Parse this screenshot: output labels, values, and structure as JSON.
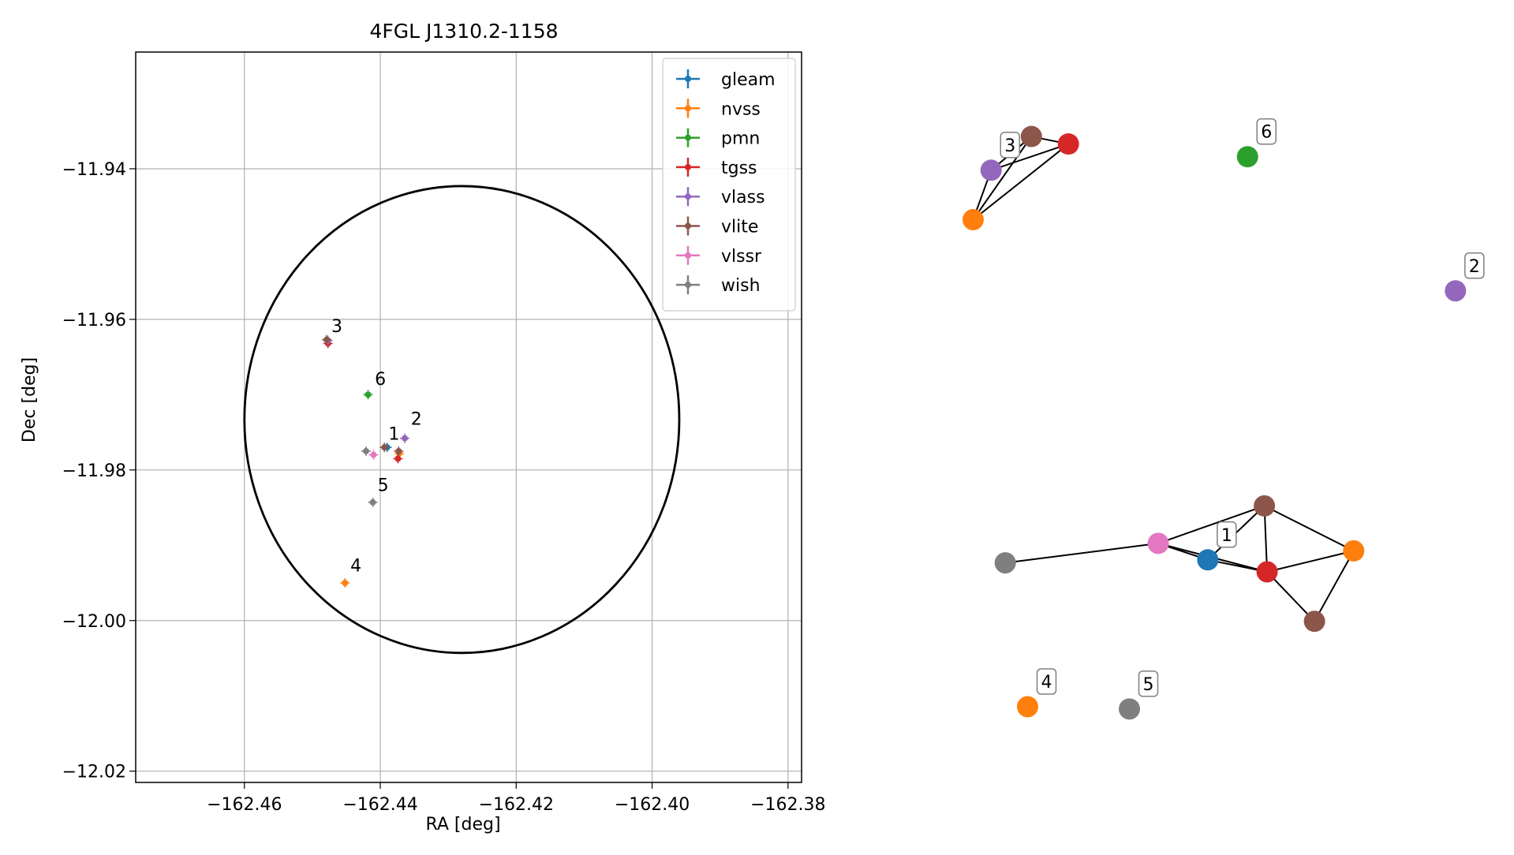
{
  "chart_data": [
    {
      "type": "scatter",
      "title": "4FGL J1310.2-1158",
      "xlabel": "RA [deg]",
      "ylabel": "Dec [deg]",
      "xlim": [
        -162.476,
        -162.378
      ],
      "ylim": [
        -12.0215,
        -11.9245
      ],
      "xticks": [
        -162.46,
        -162.44,
        -162.42,
        -162.4,
        -162.38
      ],
      "xtick_labels": [
        "−162.46",
        "−162.44",
        "−162.42",
        "−162.40",
        "−162.38"
      ],
      "yticks": [
        -11.94,
        -11.96,
        -11.98,
        -12.0,
        -12.02
      ],
      "ytick_labels": [
        "−11.94",
        "−11.96",
        "−11.98",
        "−12.00",
        "−12.02"
      ],
      "grid": true,
      "legend": "top-right",
      "series": [
        {
          "name": "gleam",
          "color": "#1f77b4",
          "points": [
            [
              -162.439,
              -11.977
            ]
          ]
        },
        {
          "name": "nvss",
          "color": "#ff7f0e",
          "points": [
            [
              -162.4372,
              -11.9778
            ],
            [
              -162.4452,
              -11.995
            ]
          ]
        },
        {
          "name": "pmn",
          "color": "#2ca02c",
          "points": [
            [
              -162.4418,
              -11.97
            ]
          ]
        },
        {
          "name": "tgss",
          "color": "#d62728",
          "points": [
            [
              -162.4374,
              -11.9785
            ],
            [
              -162.4477,
              -11.9632
            ]
          ]
        },
        {
          "name": "vlass",
          "color": "#9467bd",
          "points": [
            [
              -162.4364,
              -11.9758
            ],
            [
              -162.4477,
              -11.9628
            ]
          ]
        },
        {
          "name": "vlite",
          "color": "#8c564b",
          "points": [
            [
              -162.4394,
              -11.977
            ],
            [
              -162.4373,
              -11.9775
            ],
            [
              -162.4479,
              -11.9627
            ]
          ]
        },
        {
          "name": "vlssr",
          "color": "#e377c2",
          "points": [
            [
              -162.441,
              -11.978
            ]
          ]
        },
        {
          "name": "wish",
          "color": "#7f7f7f",
          "points": [
            [
              -162.4421,
              -11.9775
            ],
            [
              -162.4411,
              -11.9843
            ]
          ]
        }
      ],
      "ellipse": {
        "center": [
          -162.428,
          -11.9733
        ],
        "ra_halfwidth": 0.032,
        "dec_halfheight": 0.031,
        "color": "#000000"
      },
      "annotations": [
        {
          "text": "1",
          "x": -162.4388,
          "y": -11.976
        },
        {
          "text": "2",
          "x": -162.4355,
          "y": -11.974
        },
        {
          "text": "3",
          "x": -162.4472,
          "y": -11.9617
        },
        {
          "text": "4",
          "x": -162.4444,
          "y": -11.9935
        },
        {
          "text": "5",
          "x": -162.4404,
          "y": -11.9828
        },
        {
          "text": "6",
          "x": -162.4408,
          "y": -11.9687
        }
      ]
    },
    {
      "type": "network",
      "nodes": [
        {
          "id": "g1-gleam",
          "color": "#1f77b4",
          "x": 0.494,
          "y": 0.684
        },
        {
          "id": "g1-vlssr",
          "color": "#e377c2",
          "x": 0.403,
          "y": 0.662
        },
        {
          "id": "g1-wish",
          "color": "#7f7f7f",
          "x": 0.122,
          "y": 0.688
        },
        {
          "id": "g1-vlite-a",
          "color": "#8c564b",
          "x": 0.598,
          "y": 0.612
        },
        {
          "id": "g1-tgss",
          "color": "#d62728",
          "x": 0.603,
          "y": 0.7
        },
        {
          "id": "g1-nvss",
          "color": "#ff7f0e",
          "x": 0.762,
          "y": 0.672
        },
        {
          "id": "g1-vlite-b",
          "color": "#8c564b",
          "x": 0.69,
          "y": 0.766
        },
        {
          "id": "g2-vlass",
          "color": "#9467bd",
          "x": 0.949,
          "y": 0.325
        },
        {
          "id": "g3-vlite",
          "color": "#8c564b",
          "x": 0.17,
          "y": 0.119
        },
        {
          "id": "g3-tgss",
          "color": "#d62728",
          "x": 0.238,
          "y": 0.129
        },
        {
          "id": "g3-vlass",
          "color": "#9467bd",
          "x": 0.096,
          "y": 0.164
        },
        {
          "id": "g3-nvss",
          "color": "#ff7f0e",
          "x": 0.063,
          "y": 0.23
        },
        {
          "id": "g4-nvss",
          "color": "#ff7f0e",
          "x": 0.163,
          "y": 0.88
        },
        {
          "id": "g5-wish",
          "color": "#7f7f7f",
          "x": 0.35,
          "y": 0.883
        },
        {
          "id": "g6-pmn",
          "color": "#2ca02c",
          "x": 0.567,
          "y": 0.146
        }
      ],
      "edges": [
        [
          "g1-wish",
          "g1-vlssr"
        ],
        [
          "g1-vlssr",
          "g1-gleam"
        ],
        [
          "g1-vlssr",
          "g1-tgss"
        ],
        [
          "g1-vlssr",
          "g1-vlite-a"
        ],
        [
          "g1-gleam",
          "g1-tgss"
        ],
        [
          "g1-gleam",
          "g1-vlite-a"
        ],
        [
          "g1-vlite-a",
          "g1-tgss"
        ],
        [
          "g1-vlite-a",
          "g1-nvss"
        ],
        [
          "g1-tgss",
          "g1-nvss"
        ],
        [
          "g1-tgss",
          "g1-vlite-b"
        ],
        [
          "g1-nvss",
          "g1-vlite-b"
        ],
        [
          "g3-vlite",
          "g3-tgss"
        ],
        [
          "g3-vlite",
          "g3-vlass"
        ],
        [
          "g3-vlite",
          "g3-nvss"
        ],
        [
          "g3-tgss",
          "g3-vlass"
        ],
        [
          "g3-tgss",
          "g3-nvss"
        ],
        [
          "g3-vlass",
          "g3-nvss"
        ]
      ],
      "labels": [
        {
          "text": "1",
          "anchor": "g1-gleam"
        },
        {
          "text": "2",
          "anchor": "g2-vlass"
        },
        {
          "text": "3",
          "anchor": "g3-vlass"
        },
        {
          "text": "4",
          "anchor": "g4-nvss"
        },
        {
          "text": "5",
          "anchor": "g5-wish"
        },
        {
          "text": "6",
          "anchor": "g6-pmn"
        }
      ]
    }
  ]
}
